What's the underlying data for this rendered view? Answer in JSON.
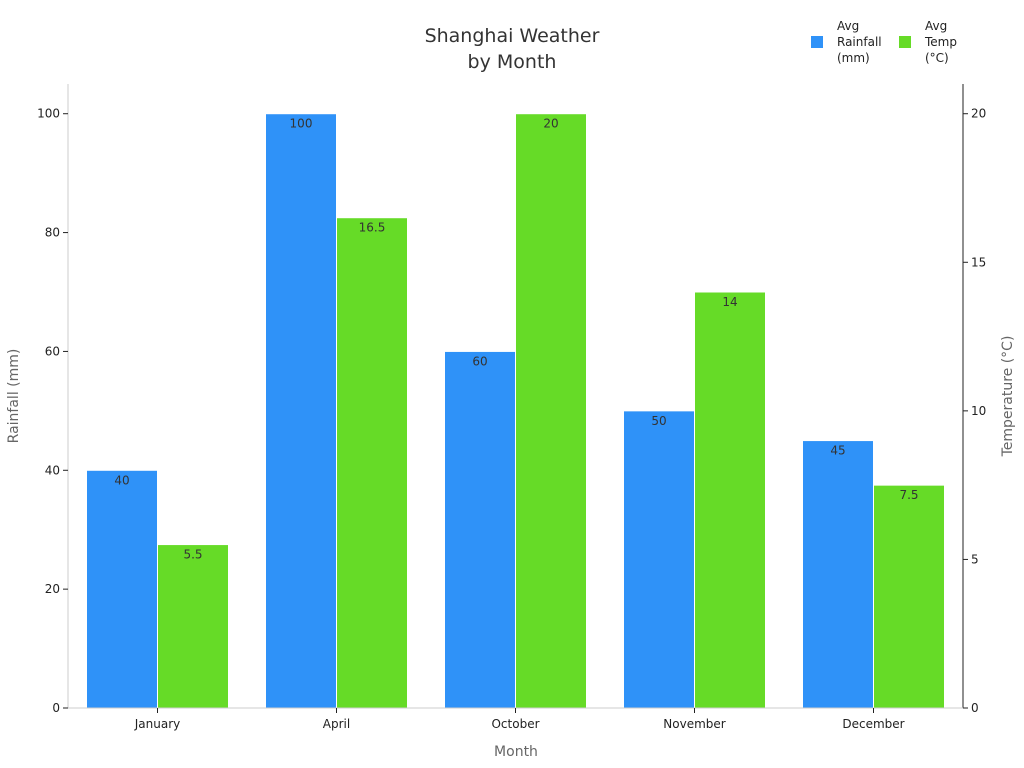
{
  "chart_data": {
    "type": "bar",
    "title": "Shanghai Weather by Month",
    "xlabel": "Month",
    "ylabel": "Rainfall (mm)",
    "ylabel_right": "Temperature (°C)",
    "categories": [
      "January",
      "April",
      "October",
      "November",
      "December"
    ],
    "series": [
      {
        "name": "Avg Rainfall (mm)",
        "axis": "left",
        "color": "#2F92F8",
        "values": [
          40,
          100,
          60,
          50,
          45
        ],
        "labels": [
          "40",
          "100",
          "60",
          "50",
          "45"
        ]
      },
      {
        "name": "Avg Temp (°C)",
        "axis": "right",
        "color": "#66DB27",
        "values": [
          5.5,
          16.5,
          20,
          14,
          7.5
        ],
        "labels": [
          "5.5",
          "16.5",
          "20",
          "14",
          "7.5"
        ]
      }
    ],
    "ylim": [
      0,
      105
    ],
    "ylim_right": [
      0,
      21
    ],
    "yticks": [
      "0",
      "20",
      "40",
      "60",
      "80",
      "100"
    ],
    "yticks_right": [
      "0",
      "5",
      "10",
      "15",
      "20"
    ],
    "grid": false,
    "legend_position": "top-right"
  }
}
